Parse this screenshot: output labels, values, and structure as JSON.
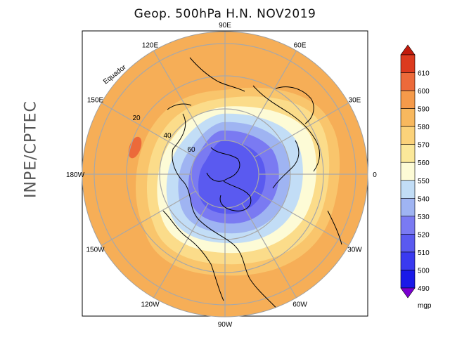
{
  "title": "Geop. 500hPa H.N. NOV2019",
  "side_label": "INPE/CPTEC",
  "longitude_labels": [
    {
      "text": "90E",
      "angle": -90
    },
    {
      "text": "60E",
      "angle": -60
    },
    {
      "text": "30E",
      "angle": -30
    },
    {
      "text": "0",
      "angle": 0
    },
    {
      "text": "30W",
      "angle": 30
    },
    {
      "text": "60W",
      "angle": 60
    },
    {
      "text": "90W",
      "angle": 90
    },
    {
      "text": "120W",
      "angle": 120
    },
    {
      "text": "150W",
      "angle": 150
    },
    {
      "text": "180W",
      "angle": 180
    },
    {
      "text": "150E",
      "angle": -150
    },
    {
      "text": "120E",
      "angle": -120
    }
  ],
  "latitude_labels": [
    "20",
    "40",
    "60"
  ],
  "equator_label": "Equador",
  "colorbar": {
    "unit": "mgp",
    "levels": [
      "490",
      "500",
      "510",
      "520",
      "530",
      "540",
      "550",
      "560",
      "570",
      "580",
      "590",
      "600",
      "610"
    ],
    "colors": [
      "#7a00d0",
      "#1a1ae8",
      "#3a3af0",
      "#5a5af0",
      "#7a7af2",
      "#9fb4f2",
      "#c2ddf6",
      "#fdfbd6",
      "#fbe89a",
      "#fbd27a",
      "#f8b85e",
      "#f59a4a",
      "#ec6a3a",
      "#dc3a1e",
      "#c21b0c"
    ]
  },
  "map_colors": {
    "ocean_bg": "#f6ae57",
    "ring_580": "#f9c56c",
    "ring_570": "#fbdc8a",
    "ring_560": "#fdfbd6",
    "ring_550": "#c2ddf6",
    "ring_540": "#9fb4f2",
    "ring_530": "#7a7af2",
    "core_520": "#5a5af0",
    "high_600": "#ec6a3a",
    "grid": "#a8a8a8",
    "coast": "#000000"
  }
}
